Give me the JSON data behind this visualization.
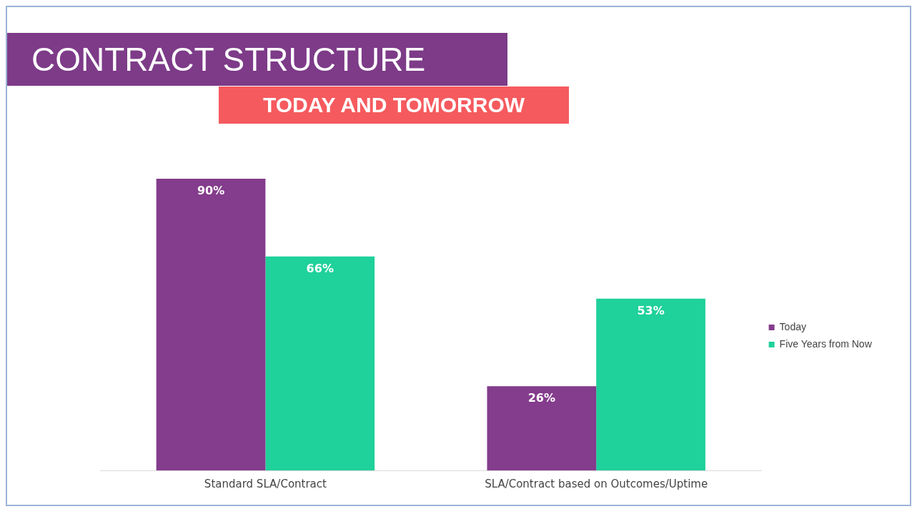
{
  "chart_data": {
    "type": "bar",
    "title": "CONTRACT STRUCTURE",
    "subtitle": "TODAY AND TOMORROW",
    "categories": [
      "Standard SLA/Contract",
      "SLA/Contract based on Outcomes/Uptime"
    ],
    "series": [
      {
        "name": "Today",
        "color": "#843c8c",
        "values": [
          90,
          26
        ],
        "value_labels": [
          "90%",
          "26%"
        ]
      },
      {
        "name": "Five Years from Now",
        "color": "#1fd19a",
        "values": [
          66,
          53
        ],
        "value_labels": [
          "66%",
          "53%"
        ]
      }
    ],
    "legend": "right"
  }
}
